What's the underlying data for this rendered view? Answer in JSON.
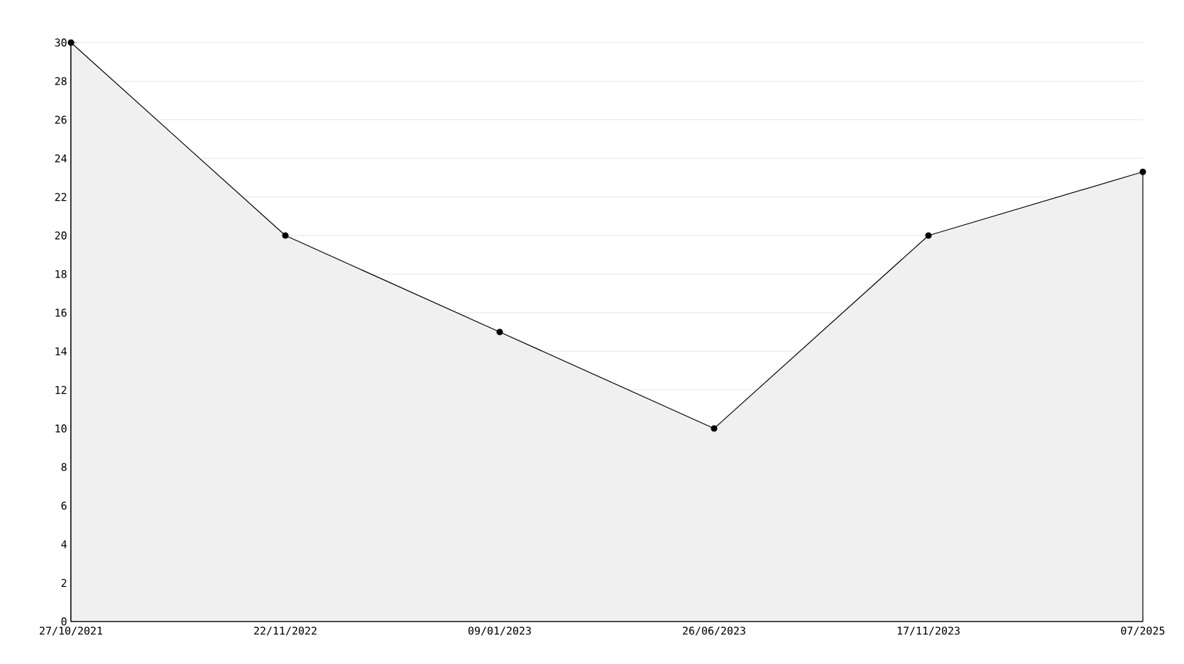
{
  "chart_data": {
    "type": "area",
    "categories": [
      "27/10/2021",
      "22/11/2022",
      "09/01/2023",
      "26/06/2023",
      "17/11/2023",
      "07/2025"
    ],
    "series": [
      {
        "color": "#000000",
        "values": [
          30,
          20,
          15,
          10,
          20,
          23.3
        ]
      }
    ],
    "ylim": [
      0,
      30
    ],
    "yticks": [
      0,
      2,
      4,
      6,
      8,
      10,
      12,
      14,
      16,
      18,
      20,
      22,
      24,
      26,
      28,
      30
    ],
    "grid": "y",
    "marker": "circle",
    "line_style": "solid"
  }
}
